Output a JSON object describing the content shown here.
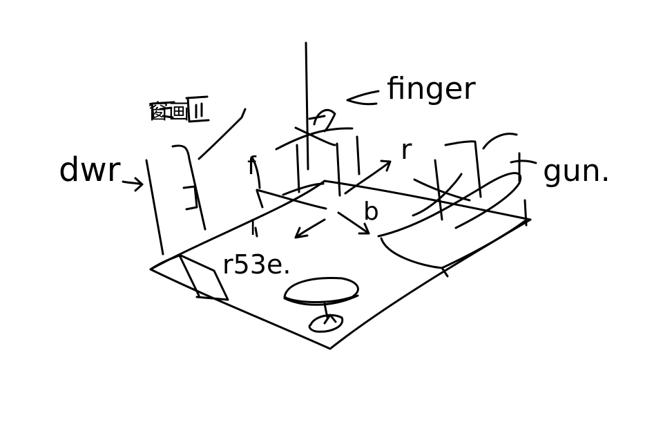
{
  "labels": {
    "door": "dwr",
    "finger": "finger",
    "gun": "gun.",
    "rose": "r53e.",
    "chinese_note": "窗画",
    "letter_f": "f",
    "letter_r": "r",
    "letter_b": "b",
    "letter_l": "l"
  },
  "colors": {
    "ink": "#000000",
    "background": "#ffffff"
  }
}
